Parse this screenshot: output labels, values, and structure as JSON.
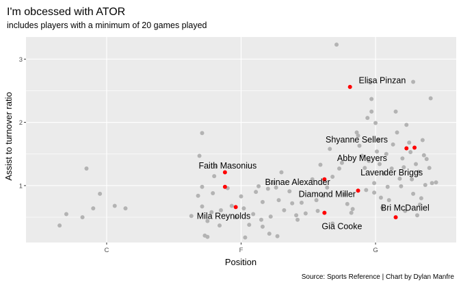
{
  "chart_data": {
    "type": "scatter",
    "title": "I'm obcessed with ATOR",
    "subtitle": "includes players with a minimum of 20 games played",
    "xlabel": "Position",
    "ylabel": "Assist to turnover ratio",
    "caption": "Source: Sports Reference | Chart by Dylan Manfre",
    "categories": [
      "C",
      "F",
      "G"
    ],
    "yticks": [
      1,
      2,
      3
    ],
    "ylim": [
      0.1,
      3.35
    ],
    "grid": true,
    "colors": {
      "panel": "#EBEBEB",
      "grid": "#FFFFFF",
      "others": "#B3B3B3",
      "highlight": "#FF0000"
    },
    "others": [
      {
        "x": 0.65,
        "y": 0.37
      },
      {
        "x": 0.7,
        "y": 0.55
      },
      {
        "x": 0.82,
        "y": 0.5
      },
      {
        "x": 0.85,
        "y": 1.27
      },
      {
        "x": 0.9,
        "y": 0.64
      },
      {
        "x": 0.95,
        "y": 0.87
      },
      {
        "x": 1.06,
        "y": 0.68
      },
      {
        "x": 1.14,
        "y": 0.64
      },
      {
        "x": 1.63,
        "y": 0.52
      },
      {
        "x": 1.68,
        "y": 0.84
      },
      {
        "x": 1.71,
        "y": 0.98
      },
      {
        "x": 1.69,
        "y": 1.47
      },
      {
        "x": 1.71,
        "y": 1.83
      },
      {
        "x": 1.73,
        "y": 0.21
      },
      {
        "x": 1.75,
        "y": 0.44
      },
      {
        "x": 1.71,
        "y": 0.67
      },
      {
        "x": 1.75,
        "y": 0.19
      },
      {
        "x": 1.78,
        "y": 0.58
      },
      {
        "x": 1.79,
        "y": 0.88
      },
      {
        "x": 1.8,
        "y": 1.15
      },
      {
        "x": 1.81,
        "y": 1.3
      },
      {
        "x": 1.84,
        "y": 0.37
      },
      {
        "x": 1.85,
        "y": 0.61
      },
      {
        "x": 1.9,
        "y": 0.96
      },
      {
        "x": 1.93,
        "y": 0.68
      },
      {
        "x": 1.96,
        "y": 0.5
      },
      {
        "x": 2.0,
        "y": 0.83
      },
      {
        "x": 2.02,
        "y": 0.64
      },
      {
        "x": 2.03,
        "y": 0.18
      },
      {
        "x": 2.06,
        "y": 0.38
      },
      {
        "x": 2.09,
        "y": 0.55
      },
      {
        "x": 2.11,
        "y": 0.9
      },
      {
        "x": 2.13,
        "y": 0.99
      },
      {
        "x": 2.15,
        "y": 0.46
      },
      {
        "x": 2.16,
        "y": 0.74
      },
      {
        "x": 2.16,
        "y": 0.35
      },
      {
        "x": 2.2,
        "y": 0.95
      },
      {
        "x": 2.21,
        "y": 0.24
      },
      {
        "x": 2.22,
        "y": 0.51
      },
      {
        "x": 2.24,
        "y": 1.04
      },
      {
        "x": 2.26,
        "y": 0.97
      },
      {
        "x": 2.27,
        "y": 0.2
      },
      {
        "x": 2.28,
        "y": 0.77
      },
      {
        "x": 2.3,
        "y": 1.21
      },
      {
        "x": 2.32,
        "y": 0.61
      },
      {
        "x": 2.36,
        "y": 0.91
      },
      {
        "x": 2.38,
        "y": 0.72
      },
      {
        "x": 2.41,
        "y": 0.53
      },
      {
        "x": 2.42,
        "y": 0.46
      },
      {
        "x": 2.45,
        "y": 0.73
      },
      {
        "x": 2.48,
        "y": 0.56
      },
      {
        "x": 2.53,
        "y": 1.1
      },
      {
        "x": 2.56,
        "y": 0.77
      },
      {
        "x": 2.57,
        "y": 0.6
      },
      {
        "x": 2.59,
        "y": 1.33
      },
      {
        "x": 2.61,
        "y": 0.84
      },
      {
        "x": 2.64,
        "y": 0.97
      },
      {
        "x": 2.66,
        "y": 1.58
      },
      {
        "x": 2.68,
        "y": 1.14
      },
      {
        "x": 2.68,
        "y": 0.4
      },
      {
        "x": 2.71,
        "y": 3.23
      },
      {
        "x": 2.73,
        "y": 1.27
      },
      {
        "x": 2.75,
        "y": 1.36
      },
      {
        "x": 2.77,
        "y": 0.86
      },
      {
        "x": 2.79,
        "y": 0.71
      },
      {
        "x": 2.82,
        "y": 0.57
      },
      {
        "x": 2.83,
        "y": 0.63
      },
      {
        "x": 2.86,
        "y": 1.84
      },
      {
        "x": 2.87,
        "y": 1.79
      },
      {
        "x": 2.88,
        "y": 1.63
      },
      {
        "x": 2.9,
        "y": 1.47
      },
      {
        "x": 2.92,
        "y": 1.28
      },
      {
        "x": 2.93,
        "y": 0.93
      },
      {
        "x": 2.94,
        "y": 2.07
      },
      {
        "x": 2.95,
        "y": 1.39
      },
      {
        "x": 2.96,
        "y": 2.63
      },
      {
        "x": 2.97,
        "y": 2.37
      },
      {
        "x": 2.97,
        "y": 2.17
      },
      {
        "x": 2.99,
        "y": 1.04
      },
      {
        "x": 2.99,
        "y": 0.89
      },
      {
        "x": 3.0,
        "y": 1.99
      },
      {
        "x": 3.01,
        "y": 1.54
      },
      {
        "x": 3.02,
        "y": 1.72
      },
      {
        "x": 3.03,
        "y": 1.34
      },
      {
        "x": 3.04,
        "y": 0.81
      },
      {
        "x": 3.05,
        "y": 0.65
      },
      {
        "x": 3.06,
        "y": 1.19
      },
      {
        "x": 3.08,
        "y": 1.5
      },
      {
        "x": 3.09,
        "y": 0.98
      },
      {
        "x": 3.1,
        "y": 0.77
      },
      {
        "x": 3.12,
        "y": 1.27
      },
      {
        "x": 3.13,
        "y": 1.65
      },
      {
        "x": 3.15,
        "y": 2.17
      },
      {
        "x": 3.16,
        "y": 1.84
      },
      {
        "x": 3.18,
        "y": 1.11
      },
      {
        "x": 3.19,
        "y": 0.99
      },
      {
        "x": 3.2,
        "y": 1.43
      },
      {
        "x": 3.21,
        "y": 1.29
      },
      {
        "x": 3.22,
        "y": 0.6
      },
      {
        "x": 3.23,
        "y": 1.96
      },
      {
        "x": 3.25,
        "y": 1.68
      },
      {
        "x": 3.26,
        "y": 1.53
      },
      {
        "x": 3.27,
        "y": 1.1
      },
      {
        "x": 3.28,
        "y": 0.87
      },
      {
        "x": 3.28,
        "y": 2.64
      },
      {
        "x": 3.3,
        "y": 1.34
      },
      {
        "x": 3.31,
        "y": 0.53
      },
      {
        "x": 3.32,
        "y": 1.22
      },
      {
        "x": 3.33,
        "y": 0.7
      },
      {
        "x": 3.34,
        "y": 0.8
      },
      {
        "x": 3.35,
        "y": 1.72
      },
      {
        "x": 3.36,
        "y": 1.48
      },
      {
        "x": 3.37,
        "y": 1.01
      },
      {
        "x": 3.38,
        "y": 1.42
      },
      {
        "x": 3.4,
        "y": 1.28
      },
      {
        "x": 3.41,
        "y": 2.38
      },
      {
        "x": 3.42,
        "y": 1.04
      },
      {
        "x": 3.45,
        "y": 1.05
      }
    ],
    "highlighted": [
      {
        "name": "Elisa Pinzan",
        "x": 2.81,
        "y": 2.56
      },
      {
        "name": "Shyanne Sellers",
        "x": 3.23,
        "y": 1.59
      },
      {
        "name": "Abby Meyers",
        "x": 3.29,
        "y": 1.6
      },
      {
        "name": "Faith Masonius",
        "x": 1.88,
        "y": 1.21
      },
      {
        "name": "Brinae Alexander",
        "x": 2.62,
        "y": 1.1
      },
      {
        "name": "Lavender Briggs",
        "x": 1.88,
        "y": 0.98
      },
      {
        "name": "Diamond Miller",
        "x": 2.87,
        "y": 0.92
      },
      {
        "name": "Mila Reynolds",
        "x": 1.96,
        "y": 0.66
      },
      {
        "name": "Bri McDaniel",
        "x": 3.15,
        "y": 0.5
      },
      {
        "name": "Gia Cooke",
        "x": 2.62,
        "y": 0.57
      }
    ],
    "labels": [
      {
        "text": "Elisa Pinzan",
        "x": 3.05,
        "y": 2.67
      },
      {
        "text": "Shyanne Sellers",
        "x": 2.86,
        "y": 1.73
      },
      {
        "text": "Abby Meyers",
        "x": 2.9,
        "y": 1.44
      },
      {
        "text": "Faith Masonius",
        "x": 1.9,
        "y": 1.32
      },
      {
        "text": "Lavender Briggs",
        "x": 3.12,
        "y": 1.21
      },
      {
        "text": "Brinae Alexander",
        "x": 2.42,
        "y": 1.06
      },
      {
        "text": "Diamond Miller",
        "x": 2.64,
        "y": 0.87
      },
      {
        "text": "Bri McDaniel",
        "x": 3.22,
        "y": 0.65
      },
      {
        "text": "Mila Reynolds",
        "x": 1.87,
        "y": 0.52
      },
      {
        "text": "Gia Cooke",
        "x": 2.75,
        "y": 0.36
      }
    ]
  }
}
